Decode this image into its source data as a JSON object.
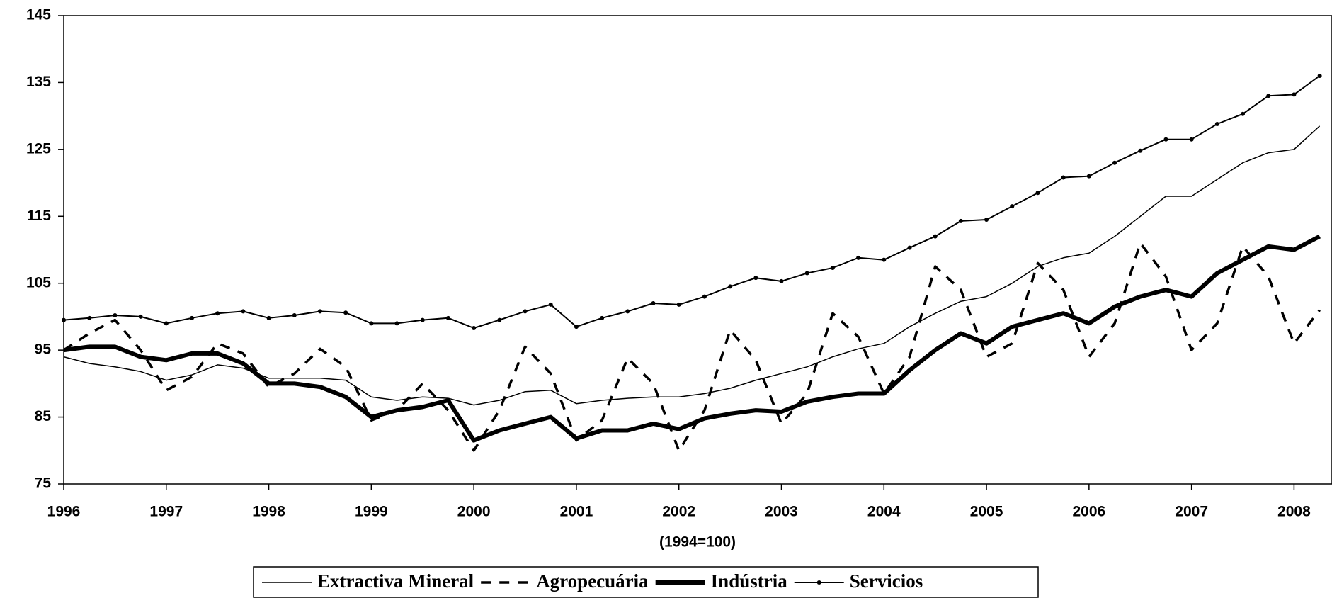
{
  "chart_data": {
    "type": "line",
    "x_label": "(1994=100)",
    "x": [
      1996,
      1996.25,
      1996.5,
      1996.75,
      1997,
      1997.25,
      1997.5,
      1997.75,
      1998,
      1998.25,
      1998.5,
      1998.75,
      1999,
      1999.25,
      1999.5,
      1999.75,
      2000,
      2000.25,
      2000.5,
      2000.75,
      2001,
      2001.25,
      2001.5,
      2001.75,
      2002,
      2002.25,
      2002.5,
      2002.75,
      2003,
      2003.25,
      2003.5,
      2003.75,
      2004,
      2004.25,
      2004.5,
      2004.75,
      2005,
      2005.25,
      2005.5,
      2005.75,
      2006,
      2006.25,
      2006.5,
      2006.75,
      2007,
      2007.25,
      2007.5,
      2007.75,
      2008,
      2008.25
    ],
    "series": [
      {
        "name": "Extractiva Mineral",
        "color": "#000000",
        "line_style": "solid",
        "line_width": 1.5,
        "marker": false,
        "values": [
          94,
          93,
          92.5,
          91.8,
          90.5,
          91.3,
          92.8,
          92.3,
          90.8,
          90.8,
          90.8,
          90.5,
          88,
          87.5,
          88,
          87.8,
          86.8,
          87.5,
          88.8,
          89,
          87,
          87.5,
          87.8,
          88,
          88,
          88.5,
          89.3,
          90.5,
          91.5,
          92.5,
          94,
          95.2,
          96,
          98.5,
          100.5,
          102.3,
          103,
          105,
          107.5,
          108.8,
          109.5,
          112,
          115,
          118,
          118,
          120.5,
          123,
          124.5,
          125,
          128.5
        ]
      },
      {
        "name": "Agropecuária",
        "color": "#000000",
        "line_style": "dashed",
        "line_width": 3.5,
        "marker": false,
        "values": [
          95,
          97.5,
          99.5,
          95,
          89,
          91,
          96,
          94.5,
          89.5,
          91.5,
          95.2,
          92.5,
          84.5,
          86,
          90,
          86,
          80,
          86,
          95.5,
          91.5,
          81.5,
          84.5,
          93.8,
          90,
          80,
          86,
          98,
          93.5,
          84,
          88.5,
          100.5,
          97,
          88.5,
          94,
          107.5,
          104,
          94,
          96,
          108,
          104,
          94,
          99,
          111,
          106,
          95,
          99,
          110.5,
          106,
          96,
          101
        ]
      },
      {
        "name": "Indústria",
        "color": "#000000",
        "line_style": "solid",
        "line_width": 6,
        "marker": false,
        "values": [
          95,
          95.5,
          95.5,
          94,
          93.5,
          94.5,
          94.5,
          93,
          90,
          90,
          89.5,
          88,
          85,
          86,
          86.5,
          87.5,
          81.5,
          83,
          84,
          85,
          81.8,
          83,
          83,
          84,
          83.2,
          84.8,
          85.5,
          86,
          85.8,
          87.3,
          88,
          88.5,
          88.5,
          92,
          95,
          97.5,
          96,
          98.5,
          99.5,
          100.5,
          99,
          101.5,
          103,
          104,
          103,
          106.5,
          108.5,
          110.5,
          110,
          112
        ]
      },
      {
        "name": "Servicios",
        "color": "#000000",
        "line_style": "solid",
        "line_width": 2,
        "marker": true,
        "values": [
          99.5,
          99.8,
          100.2,
          100,
          99,
          99.8,
          100.5,
          100.8,
          99.8,
          100.2,
          100.8,
          100.6,
          99,
          99,
          99.5,
          99.8,
          98.3,
          99.5,
          100.8,
          101.8,
          98.5,
          99.8,
          100.8,
          102,
          101.8,
          103,
          104.5,
          105.8,
          105.3,
          106.5,
          107.3,
          108.8,
          108.5,
          110.3,
          112,
          114.3,
          114.5,
          116.5,
          118.5,
          120.8,
          121,
          123,
          124.8,
          126.5,
          126.5,
          128.8,
          130.3,
          133,
          133.2,
          136
        ]
      }
    ],
    "xlim": [
      1996,
      2008.37
    ],
    "xticks": [
      1996,
      1997,
      1998,
      1999,
      2000,
      2001,
      2002,
      2003,
      2004,
      2005,
      2006,
      2007,
      2008
    ],
    "ylim": [
      75,
      145
    ],
    "yticks": [
      75,
      85,
      95,
      105,
      115,
      125,
      135,
      145
    ],
    "grid": false,
    "legend": "bottom"
  }
}
